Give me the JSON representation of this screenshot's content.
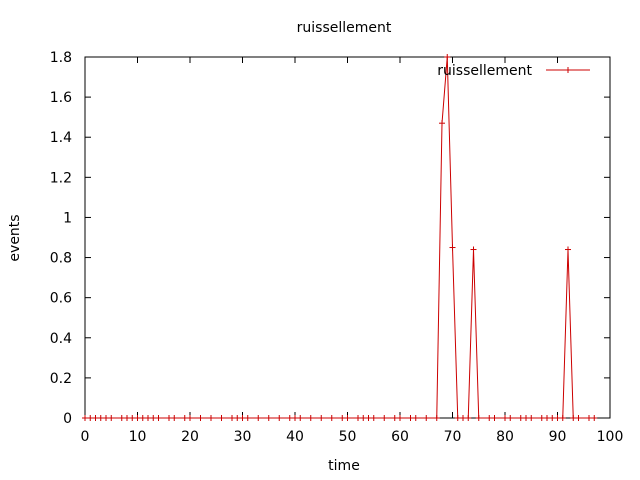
{
  "chart_data": {
    "type": "line",
    "title": "ruissellement",
    "xlabel": "time",
    "ylabel": "events",
    "xlim": [
      0,
      100
    ],
    "ylim": [
      0,
      1.8
    ],
    "xticks": [
      0,
      10,
      20,
      30,
      40,
      50,
      60,
      70,
      80,
      90,
      100
    ],
    "yticks": [
      0,
      0.2,
      0.4,
      0.6,
      0.8,
      1,
      1.2,
      1.4,
      1.6,
      1.8
    ],
    "grid": false,
    "legend_position": "top-right",
    "series": [
      {
        "name": "ruissellement",
        "color": "#cc0000",
        "marker": "plus",
        "x": [
          0,
          1,
          2,
          3,
          4,
          5,
          7,
          8,
          9,
          10,
          11,
          12,
          13,
          14,
          16,
          17,
          19,
          20,
          22,
          24,
          26,
          28,
          29,
          30,
          31,
          33,
          35,
          37,
          39,
          40,
          41,
          43,
          45,
          47,
          49,
          50,
          52,
          53,
          54,
          55,
          57,
          59,
          60,
          62,
          63,
          65,
          67,
          68,
          69,
          70,
          71,
          72,
          73,
          74,
          75,
          77,
          78,
          80,
          81,
          83,
          84,
          85,
          87,
          88,
          89,
          90,
          91,
          92,
          93,
          94,
          96,
          97
        ],
        "y": [
          0,
          0,
          0,
          0,
          0,
          0,
          0,
          0,
          0,
          0,
          0,
          0,
          0,
          0,
          0,
          0,
          0,
          0,
          0,
          0,
          0,
          0,
          0,
          0,
          0,
          0,
          0,
          0,
          0,
          0,
          0,
          0,
          0,
          0,
          0,
          0,
          0,
          0,
          0,
          0,
          0,
          0,
          0,
          0,
          0,
          0,
          0,
          1.47,
          1.8,
          0.85,
          0,
          0,
          0,
          0.84,
          0,
          0,
          0,
          0,
          0,
          0,
          0,
          0,
          0,
          0,
          0,
          0,
          0,
          0.84,
          0,
          0,
          0,
          0
        ]
      }
    ]
  }
}
